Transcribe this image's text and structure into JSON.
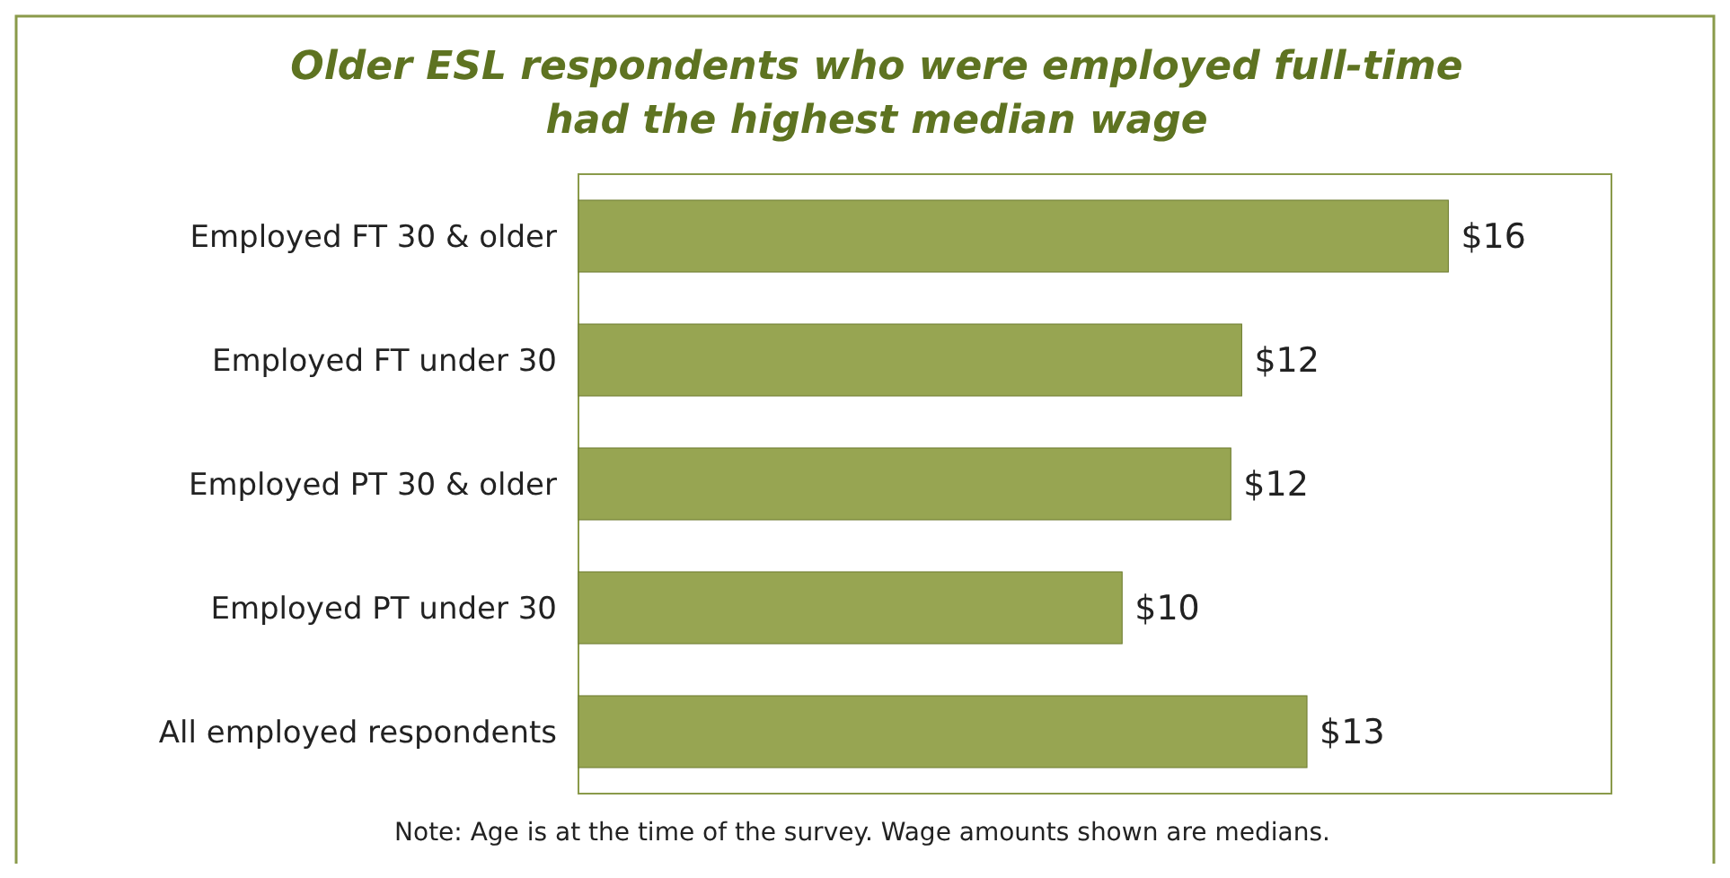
{
  "chart_data": {
    "type": "bar",
    "orientation": "horizontal",
    "title": "Older ESL respondents who were employed full-time\nhad the highest median wage",
    "categories": [
      "Employed FT 30 & older",
      "Employed FT under 30",
      "Employed PT 30 & older",
      "Employed PT under 30",
      "All employed respondents"
    ],
    "values": [
      16,
      12.2,
      12,
      10,
      13.4
    ],
    "value_labels": [
      "$16",
      "$12",
      "$12",
      "$10",
      "$13"
    ],
    "color": "#97a552",
    "xlim": [
      0,
      19
    ],
    "tick_labels": "y",
    "annotations": [
      "Note: Age is at the time of the survey.  Wage amounts shown are medians."
    ]
  }
}
